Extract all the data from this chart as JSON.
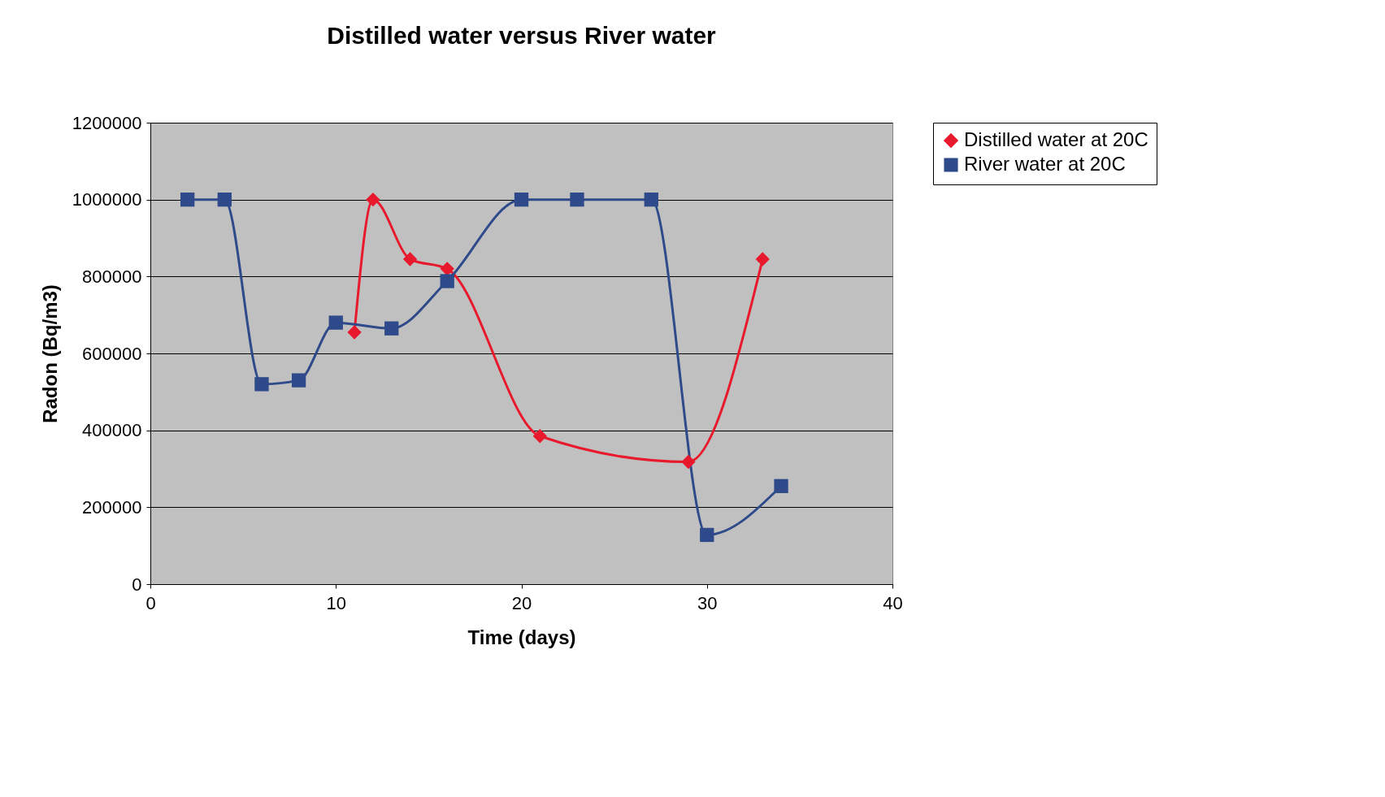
{
  "chart_data": {
    "type": "line",
    "title": "Distilled water versus River water",
    "xlabel": "Time (days)",
    "ylabel": "Radon (Bq/m3)",
    "xlim": [
      0,
      40
    ],
    "xticks": [
      0,
      10,
      20,
      30,
      40
    ],
    "ylim": [
      0,
      1200000
    ],
    "yticks": [
      0,
      200000,
      400000,
      600000,
      800000,
      1000000,
      1200000
    ],
    "grid": "y",
    "legend": "right",
    "series": [
      {
        "name": "Distilled water at 20C",
        "color": "#e8192c",
        "marker": "diamond",
        "x": [
          11,
          12,
          14,
          16,
          21,
          29,
          33
        ],
        "values": [
          655000,
          1000000,
          845000,
          820000,
          385000,
          318000,
          845000
        ]
      },
      {
        "name": "River water at 20C",
        "color": "#2e4a8a",
        "marker": "square",
        "x": [
          2,
          4,
          6,
          8,
          10,
          13,
          16,
          20,
          23,
          27,
          30,
          34
        ],
        "values": [
          1000000,
          1000000,
          520000,
          530000,
          680000,
          665000,
          788000,
          1000000,
          1000000,
          1000000,
          128000,
          255000
        ]
      }
    ]
  }
}
